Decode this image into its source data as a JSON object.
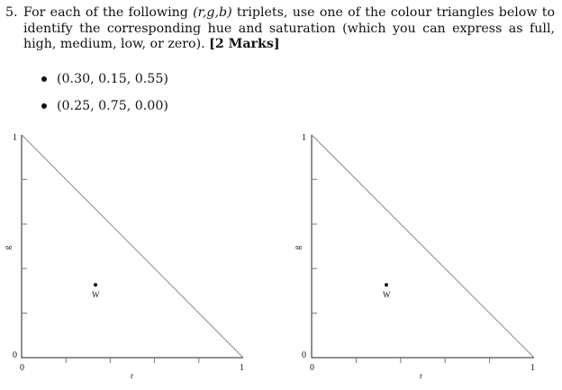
{
  "question": {
    "number": "5.",
    "text_before": "For each of the following ",
    "triplet_notation": "(r,g,b)",
    "text_after": " triplets, use one of the colour triangles below to identify the corresponding hue and saturation (which you can express as full, high, medium, low, or zero). ",
    "marks": "[2 Marks]"
  },
  "bullets": [
    {
      "text": "(0.30, 0.15, 0.55)"
    },
    {
      "text": "(0.25, 0.75, 0.00)"
    }
  ],
  "triangle_labels": {
    "x_axis": "r",
    "y_axis": "g",
    "x_min": "0",
    "x_max": "1",
    "y_min": "0",
    "y_max": "1",
    "white_point": "W"
  }
}
